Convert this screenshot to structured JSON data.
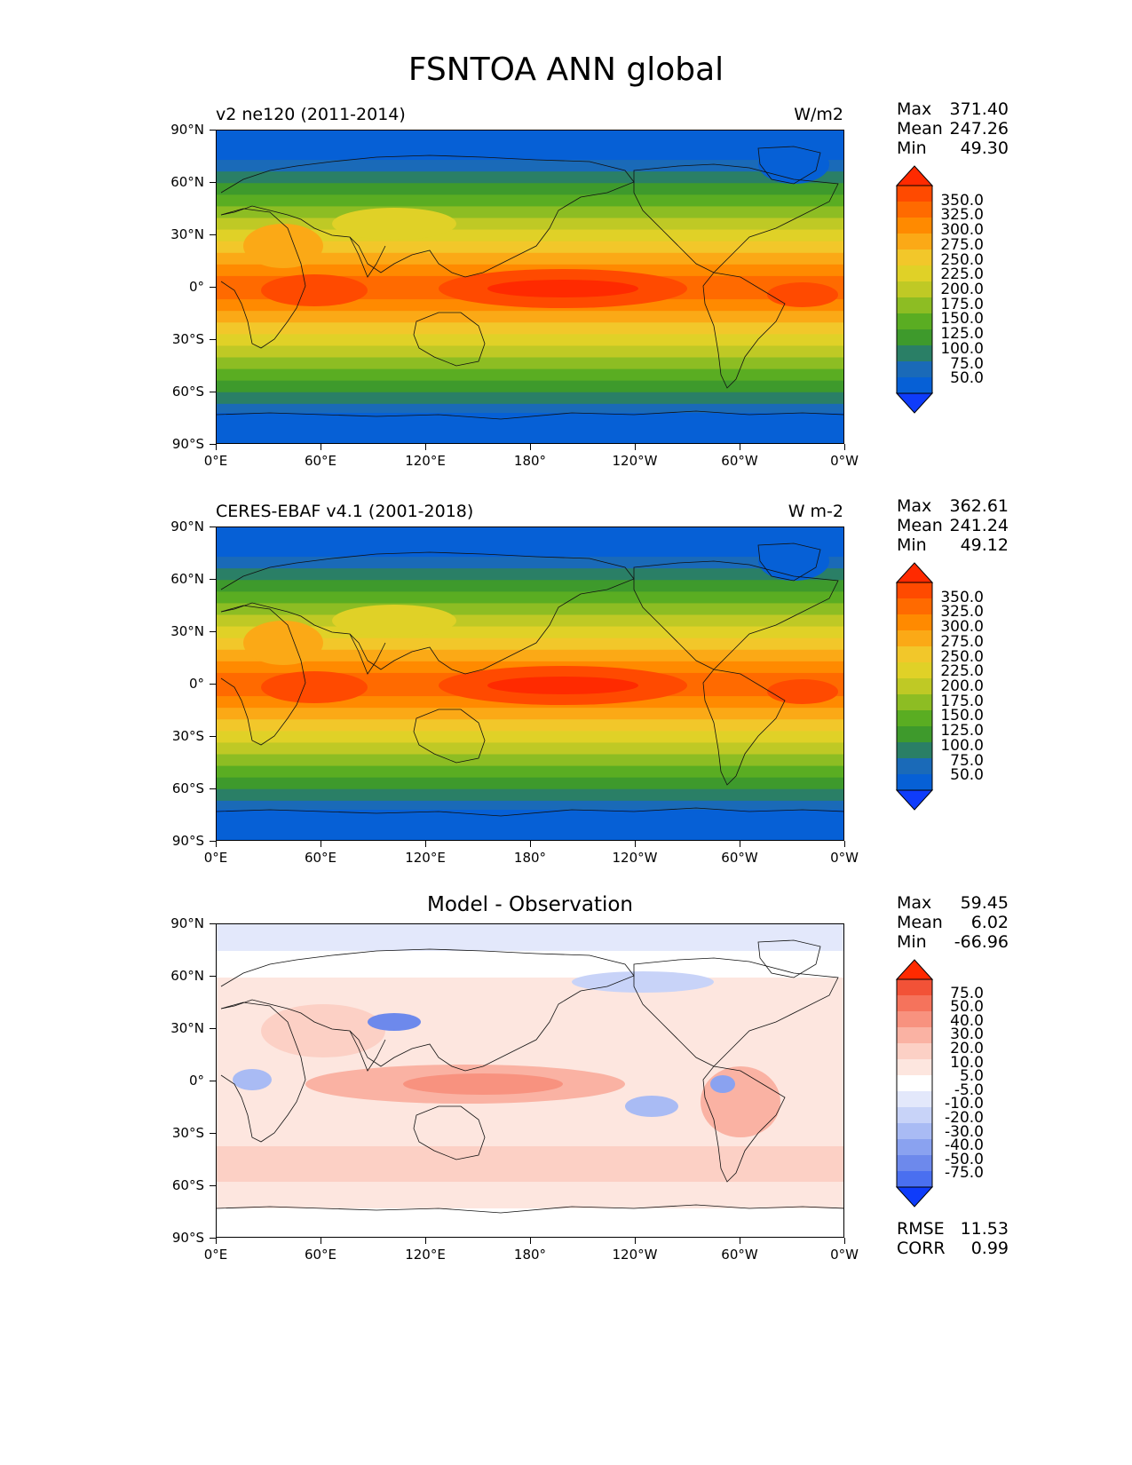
{
  "figure": {
    "title": "FSNTOA ANN global"
  },
  "axes": {
    "lat_ticks": [
      "90°N",
      "60°N",
      "30°N",
      "0°",
      "30°S",
      "60°S",
      "90°S"
    ],
    "lon_ticks": [
      "0°E",
      "60°E",
      "120°E",
      "180°",
      "120°W",
      "60°W",
      "0°W"
    ]
  },
  "chart_data": [
    {
      "type": "heatmap",
      "left_title": "v2 ne120 (2011-2014)",
      "right_title": "W/m2",
      "stats": [
        {
          "label": "Max",
          "value": "371.40"
        },
        {
          "label": "Mean",
          "value": "247.26"
        },
        {
          "label": "Min",
          "value": "49.30"
        }
      ],
      "colorbar_ticks": [
        "350.0",
        "325.0",
        "300.0",
        "275.0",
        "250.0",
        "225.0",
        "200.0",
        "175.0",
        "150.0",
        "125.0",
        "100.0",
        "75.0",
        "50.0"
      ],
      "colorbar_colors": [
        "#ff2a00",
        "#ff4a00",
        "#ff6a00",
        "#ff8a00",
        "#fba916",
        "#f2c72a",
        "#e0d127",
        "#bfc925",
        "#8dbd23",
        "#5aad22",
        "#3e9a2c",
        "#2a7f66",
        "#1a6ab8",
        "#0660d6",
        "#0f3cfa"
      ]
    },
    {
      "type": "heatmap",
      "left_title": "CERES-EBAF v4.1 (2001-2018)",
      "right_title": "W m-2",
      "stats": [
        {
          "label": "Max",
          "value": "362.61"
        },
        {
          "label": "Mean",
          "value": "241.24"
        },
        {
          "label": "Min",
          "value": "49.12"
        }
      ],
      "colorbar_ticks": [
        "350.0",
        "325.0",
        "300.0",
        "275.0",
        "250.0",
        "225.0",
        "200.0",
        "175.0",
        "150.0",
        "125.0",
        "100.0",
        "75.0",
        "50.0"
      ],
      "colorbar_colors": [
        "#ff2a00",
        "#ff4a00",
        "#ff6a00",
        "#ff8a00",
        "#fba916",
        "#f2c72a",
        "#e0d127",
        "#bfc925",
        "#8dbd23",
        "#5aad22",
        "#3e9a2c",
        "#2a7f66",
        "#1a6ab8",
        "#0660d6",
        "#0f3cfa"
      ]
    },
    {
      "type": "heatmap",
      "center_title": "Model - Observation",
      "stats": [
        {
          "label": "Max",
          "value": "59.45"
        },
        {
          "label": "Mean",
          "value": "6.02"
        },
        {
          "label": "Min",
          "value": "-66.96"
        }
      ],
      "extra_stats": [
        {
          "label": "RMSE",
          "value": "11.53"
        },
        {
          "label": "CORR",
          "value": "0.99"
        }
      ],
      "colorbar_ticks": [
        "75.0",
        "50.0",
        "40.0",
        "30.0",
        "20.0",
        "10.0",
        "5.0",
        "-5.0",
        "-10.0",
        "-20.0",
        "-30.0",
        "-40.0",
        "-50.0",
        "-75.0"
      ],
      "colorbar_colors": [
        "#ff2a00",
        "#f25237",
        "#f5735c",
        "#f8927f",
        "#fab2a3",
        "#fcd0c5",
        "#fde6df",
        "#ffffff",
        "#e3e8fb",
        "#c8d3f8",
        "#a9bbf4",
        "#8aa2f0",
        "#6d89ec",
        "#4a6ff0",
        "#0f3cfa"
      ]
    }
  ]
}
